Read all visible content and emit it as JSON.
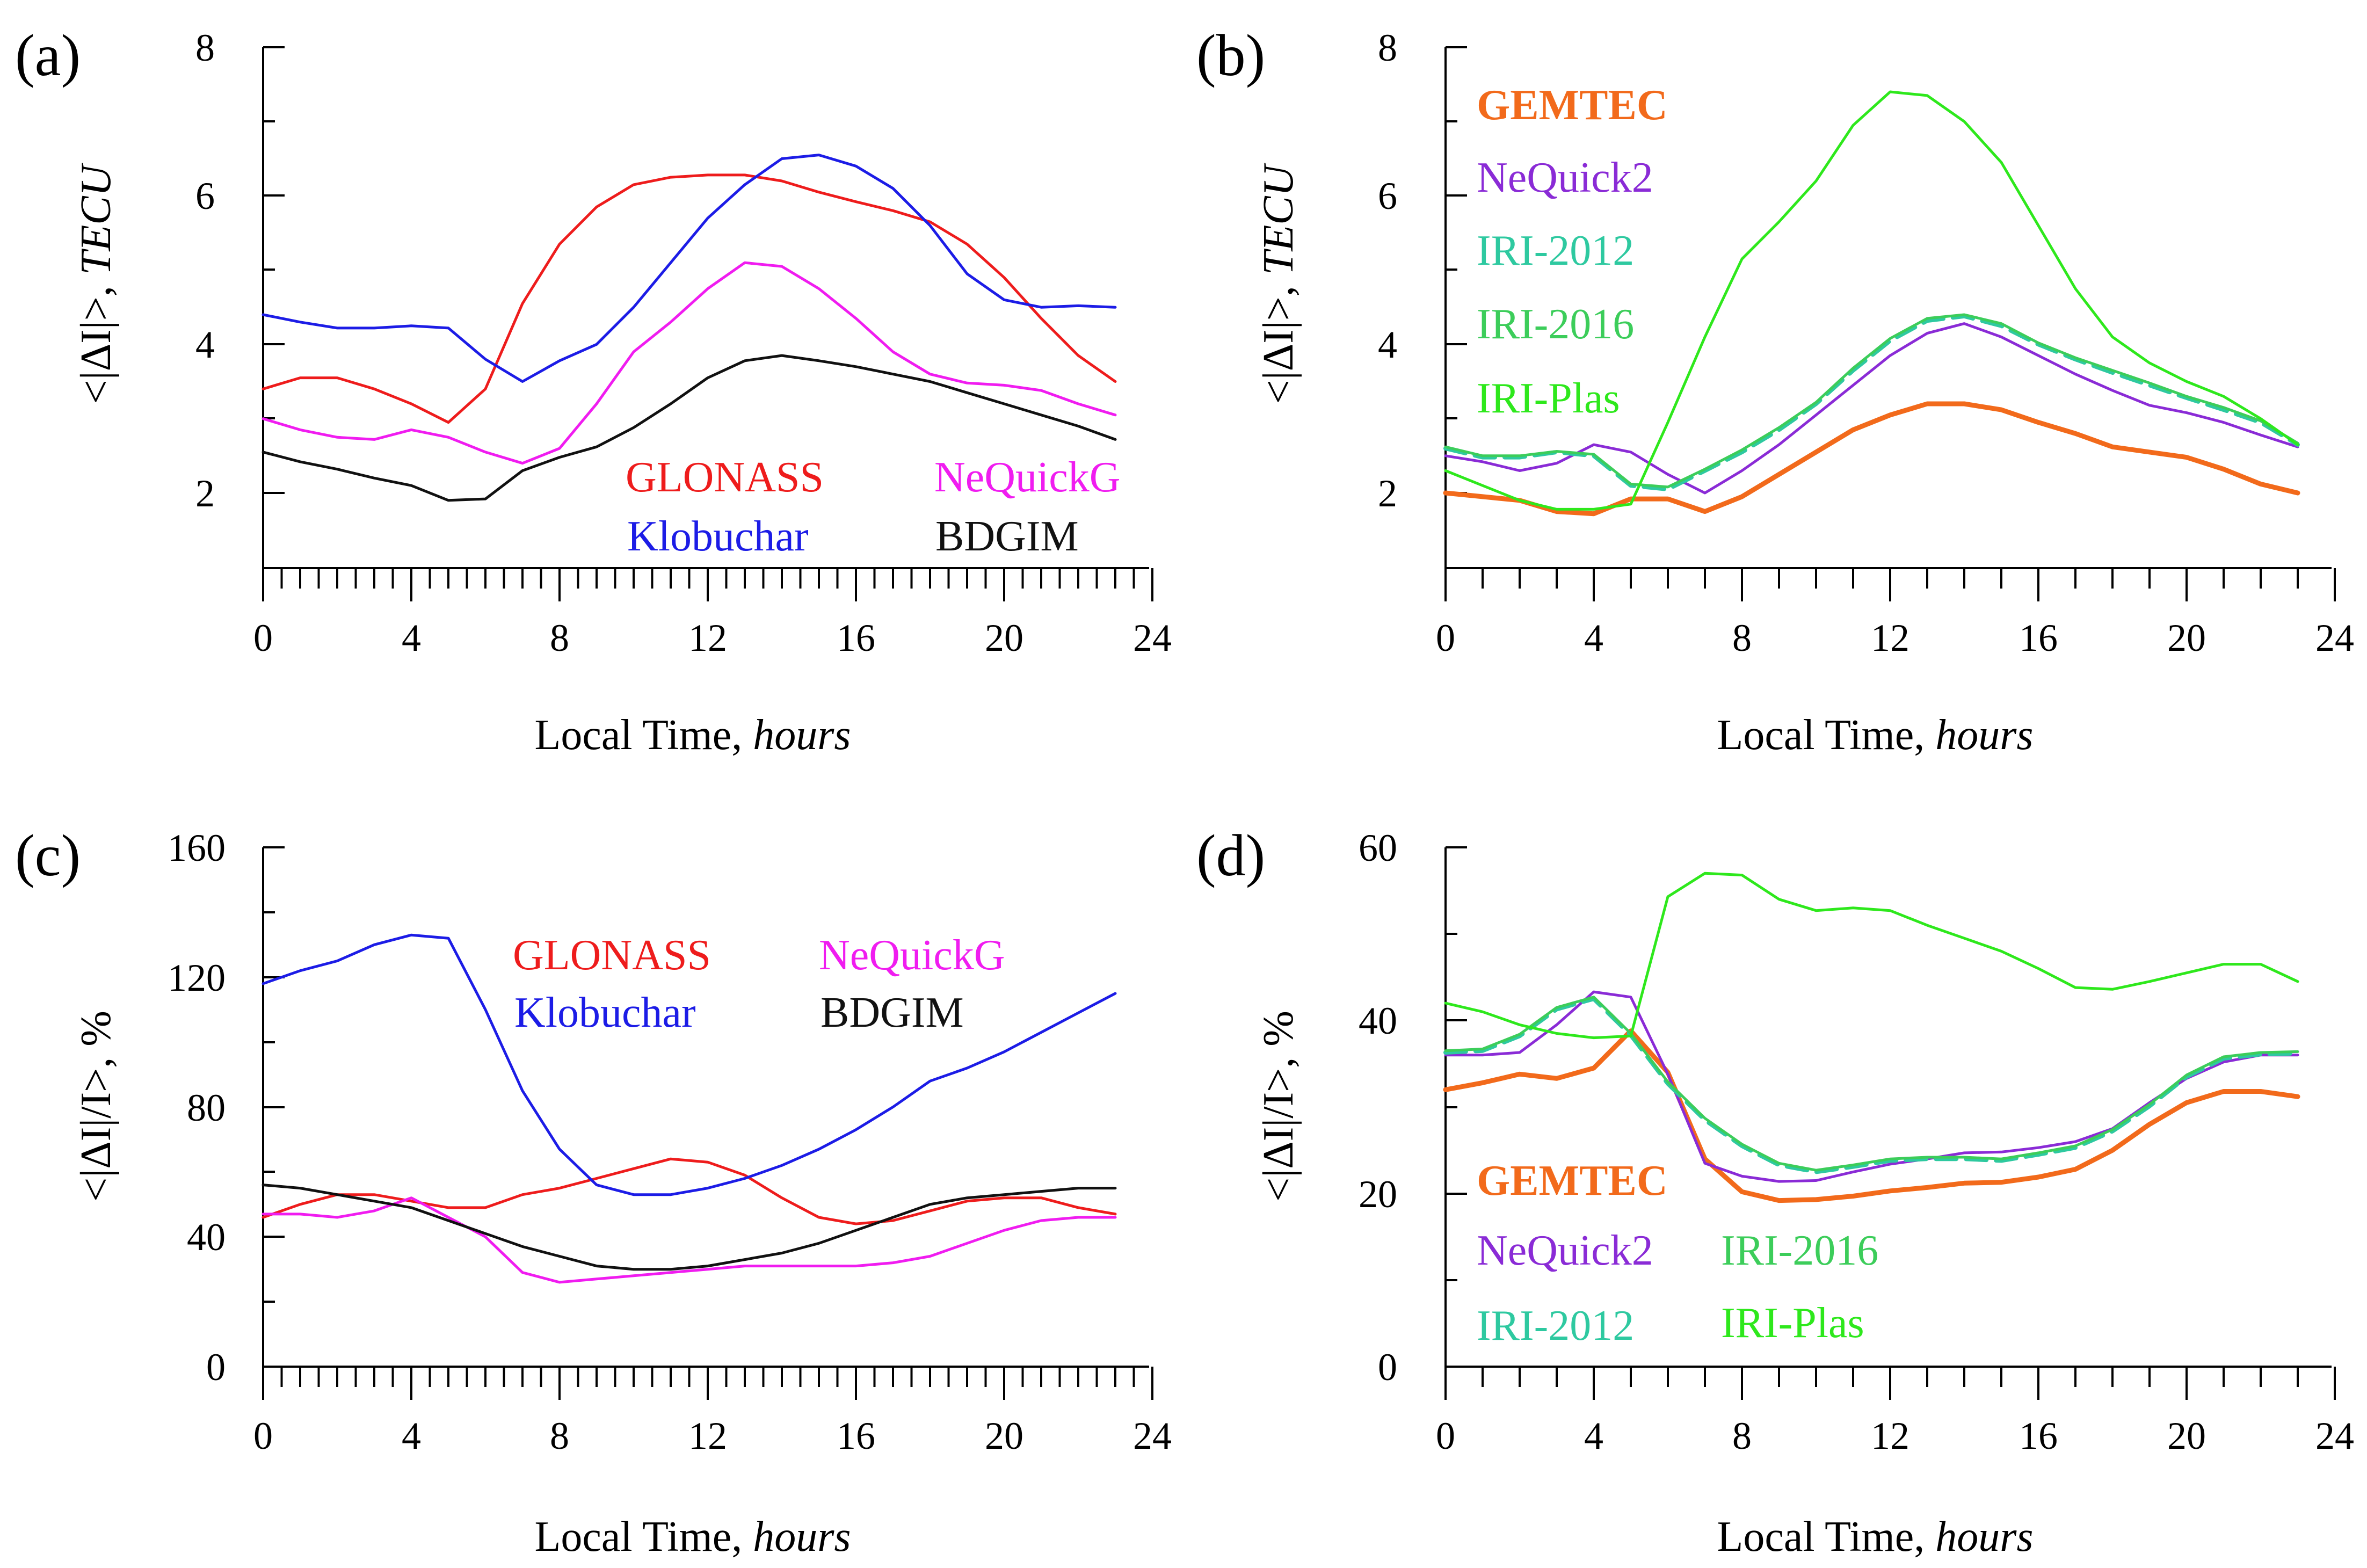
{
  "chart_data": [
    {
      "panel": "(a)",
      "type": "line",
      "xlabel": "Local Time,",
      "xlabel_unit": "hours",
      "ylabel": "<|ΔI|>,",
      "ylabel_unit": "TECU",
      "xlim": [
        0,
        24
      ],
      "ylim": [
        1,
        8
      ],
      "xticks": [
        0,
        4,
        8,
        12,
        16,
        20,
        24
      ],
      "yticks": [
        2,
        4,
        6,
        8
      ],
      "x": [
        0,
        1,
        2,
        3,
        4,
        5,
        6,
        7,
        8,
        9,
        10,
        11,
        12,
        13,
        14,
        15,
        16,
        17,
        18,
        19,
        20,
        21,
        22,
        23
      ],
      "series": [
        {
          "name": "GLONASS",
          "color": "#ee1c1c",
          "values": [
            3.4,
            3.55,
            3.55,
            3.4,
            3.2,
            2.95,
            3.4,
            4.55,
            5.35,
            5.85,
            6.15,
            6.25,
            6.28,
            6.28,
            6.2,
            6.05,
            5.92,
            5.8,
            5.65,
            5.35,
            4.9,
            4.35,
            3.85,
            3.5
          ]
        },
        {
          "name": "Klobuchar",
          "color": "#1c1ce6",
          "values": [
            4.4,
            4.3,
            4.22,
            4.22,
            4.25,
            4.22,
            3.8,
            3.5,
            3.78,
            4.0,
            4.5,
            5.1,
            5.7,
            6.15,
            6.5,
            6.55,
            6.4,
            6.1,
            5.6,
            4.95,
            4.6,
            4.5,
            4.52,
            4.5
          ]
        },
        {
          "name": "NeQuickG",
          "color": "#f01cf0",
          "values": [
            3.0,
            2.85,
            2.75,
            2.72,
            2.85,
            2.75,
            2.55,
            2.4,
            2.6,
            3.2,
            3.9,
            4.3,
            4.75,
            5.1,
            5.05,
            4.75,
            4.35,
            3.9,
            3.6,
            3.48,
            3.45,
            3.38,
            3.2,
            3.05
          ]
        },
        {
          "name": "BDGIM",
          "color": "#111111",
          "values": [
            2.55,
            2.42,
            2.32,
            2.2,
            2.1,
            1.9,
            1.92,
            2.3,
            2.48,
            2.62,
            2.88,
            3.2,
            3.55,
            3.78,
            3.85,
            3.78,
            3.7,
            3.6,
            3.5,
            3.35,
            3.2,
            3.05,
            2.9,
            2.72
          ]
        }
      ],
      "legend_placement": "lower-center"
    },
    {
      "panel": "(b)",
      "type": "line",
      "xlabel": "Local Time,",
      "xlabel_unit": "hours",
      "ylabel": "<|ΔI|>,",
      "ylabel_unit": "TECU",
      "xlim": [
        0,
        24
      ],
      "ylim": [
        1,
        8
      ],
      "xticks": [
        0,
        4,
        8,
        12,
        16,
        20,
        24
      ],
      "yticks": [
        2,
        4,
        6,
        8
      ],
      "x": [
        0,
        1,
        2,
        3,
        4,
        5,
        6,
        7,
        8,
        9,
        10,
        11,
        12,
        13,
        14,
        15,
        16,
        17,
        18,
        19,
        20,
        21,
        22,
        23
      ],
      "series": [
        {
          "name": "GEMTEC",
          "color": "#f26a1b",
          "values": [
            2.0,
            1.95,
            1.9,
            1.75,
            1.72,
            1.92,
            1.92,
            1.75,
            1.95,
            2.25,
            2.55,
            2.85,
            3.05,
            3.2,
            3.2,
            3.12,
            2.95,
            2.8,
            2.62,
            2.55,
            2.48,
            2.32,
            2.12,
            2.0
          ]
        },
        {
          "name": "NeQuick2",
          "color": "#8a2bd6",
          "values": [
            2.5,
            2.42,
            2.3,
            2.4,
            2.65,
            2.55,
            2.25,
            2.0,
            2.3,
            2.65,
            3.05,
            3.45,
            3.85,
            4.15,
            4.28,
            4.1,
            3.85,
            3.6,
            3.38,
            3.18,
            3.08,
            2.95,
            2.78,
            2.62
          ]
        },
        {
          "name": "IRI-2012",
          "color": "#2ec9a0",
          "values": [
            2.6,
            2.48,
            2.48,
            2.55,
            2.5,
            2.1,
            2.05,
            2.3,
            2.55,
            2.85,
            3.2,
            3.65,
            4.05,
            4.32,
            4.38,
            4.25,
            4.0,
            3.8,
            3.62,
            3.45,
            3.28,
            3.12,
            2.95,
            2.65
          ]
        },
        {
          "name": "IRI-2016",
          "color": "#3ccd5a",
          "values": [
            2.62,
            2.5,
            2.5,
            2.56,
            2.52,
            2.12,
            2.08,
            2.32,
            2.58,
            2.88,
            3.22,
            3.68,
            4.08,
            4.35,
            4.4,
            4.28,
            4.02,
            3.82,
            3.65,
            3.48,
            3.3,
            3.15,
            2.97,
            2.67
          ]
        },
        {
          "name": "IRI-Plas",
          "color": "#2ee81c",
          "values": [
            2.3,
            2.1,
            1.9,
            1.78,
            1.78,
            1.85,
            2.95,
            4.1,
            5.15,
            5.65,
            6.2,
            6.95,
            7.4,
            7.35,
            7.0,
            6.45,
            5.6,
            4.75,
            4.1,
            3.75,
            3.5,
            3.3,
            3.0,
            2.65
          ]
        }
      ],
      "legend_placement": "top-left"
    },
    {
      "panel": "(c)",
      "type": "line",
      "xlabel": "Local Time,",
      "xlabel_unit": "hours",
      "ylabel": "<|ΔI|/I>, %",
      "xlim": [
        0,
        24
      ],
      "ylim": [
        0,
        160
      ],
      "xticks": [
        0,
        4,
        8,
        12,
        16,
        20,
        24
      ],
      "yticks": [
        0,
        40,
        80,
        120,
        160
      ],
      "x": [
        0,
        1,
        2,
        3,
        4,
        5,
        6,
        7,
        8,
        9,
        10,
        11,
        12,
        13,
        14,
        15,
        16,
        17,
        18,
        19,
        20,
        21,
        22,
        23
      ],
      "series": [
        {
          "name": "GLONASS",
          "color": "#ee1c1c",
          "values": [
            46,
            50,
            53,
            53,
            51,
            49,
            49,
            53,
            55,
            58,
            61,
            64,
            63,
            59,
            52,
            46,
            44,
            45,
            48,
            51,
            52,
            52,
            49,
            47
          ]
        },
        {
          "name": "Klobuchar",
          "color": "#1c1ce6",
          "values": [
            118,
            122,
            125,
            130,
            133,
            132,
            110,
            85,
            67,
            56,
            53,
            53,
            55,
            58,
            62,
            67,
            73,
            80,
            88,
            92,
            97,
            103,
            109,
            115
          ]
        },
        {
          "name": "NeQuickG",
          "color": "#f01cf0",
          "values": [
            47,
            47,
            46,
            48,
            52,
            46,
            40,
            29,
            26,
            27,
            28,
            29,
            30,
            31,
            31,
            31,
            31,
            32,
            34,
            38,
            42,
            45,
            46,
            46
          ]
        },
        {
          "name": "BDGIM",
          "color": "#111111",
          "values": [
            56,
            55,
            53,
            51,
            49,
            45,
            41,
            37,
            34,
            31,
            30,
            30,
            31,
            33,
            35,
            38,
            42,
            46,
            50,
            52,
            53,
            54,
            55,
            55
          ]
        }
      ],
      "legend_placement": "top-right"
    },
    {
      "panel": "(d)",
      "type": "line",
      "xlabel": "Local Time,",
      "xlabel_unit": "hours",
      "ylabel": "<|ΔI|/I>, %",
      "xlim": [
        0,
        24
      ],
      "ylim": [
        0,
        60
      ],
      "xticks": [
        0,
        4,
        8,
        12,
        16,
        20,
        24
      ],
      "yticks": [
        0,
        20,
        40,
        60
      ],
      "x": [
        0,
        1,
        2,
        3,
        4,
        5,
        6,
        7,
        8,
        9,
        10,
        11,
        12,
        13,
        14,
        15,
        16,
        17,
        18,
        19,
        20,
        21,
        22,
        23
      ],
      "series": [
        {
          "name": "GEMTEC",
          "color": "#f26a1b",
          "values": [
            32,
            32.8,
            33.8,
            33.3,
            34.5,
            38.8,
            34,
            24,
            20.2,
            19.2,
            19.3,
            19.7,
            20.3,
            20.7,
            21.2,
            21.3,
            21.9,
            22.8,
            25,
            28,
            30.5,
            31.8,
            31.8,
            31.2
          ]
        },
        {
          "name": "NeQuick2",
          "color": "#8a2bd6",
          "values": [
            36,
            36,
            36.3,
            39.5,
            43.3,
            42.7,
            33.8,
            23.5,
            22,
            21.4,
            21.5,
            22.5,
            23.4,
            24,
            24.7,
            24.8,
            25.3,
            26,
            27.5,
            30.5,
            33.3,
            35.2,
            36,
            36
          ]
        },
        {
          "name": "IRI-2012",
          "color": "#2ec9a0",
          "values": [
            36.3,
            36.5,
            38.2,
            41.3,
            42.5,
            38.3,
            32.7,
            28.5,
            25.5,
            23.3,
            22.5,
            23.1,
            23.8,
            24,
            24,
            23.8,
            24.5,
            25.3,
            27.2,
            30.1,
            33.5,
            35.6,
            36.1,
            36.2
          ]
        },
        {
          "name": "IRI-2016",
          "color": "#3ccd5a",
          "values": [
            36.5,
            36.7,
            38.4,
            41.5,
            42.7,
            38.5,
            32.9,
            28.7,
            25.7,
            23.5,
            22.7,
            23.3,
            24,
            24.2,
            24.2,
            24,
            24.7,
            25.5,
            27.4,
            30.3,
            33.7,
            35.8,
            36.3,
            36.4
          ]
        },
        {
          "name": "IRI-Plas",
          "color": "#2ee81c",
          "values": [
            42,
            41,
            39.5,
            38.5,
            38,
            38.2,
            54.3,
            57,
            56.8,
            54,
            52.7,
            53,
            52.7,
            51,
            49.5,
            48,
            46,
            43.8,
            43.6,
            44.5,
            45.5,
            46.5,
            46.5,
            44.5
          ]
        }
      ],
      "legend_placement": "lower-left"
    }
  ]
}
